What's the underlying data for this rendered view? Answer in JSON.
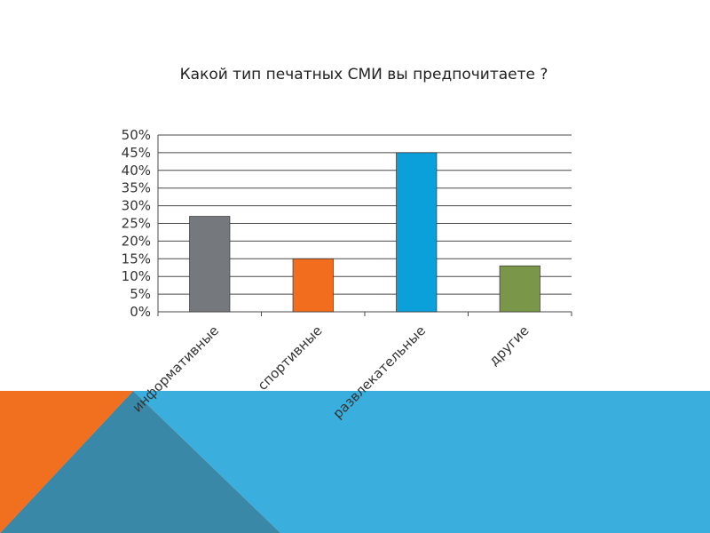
{
  "slide": {
    "decor_colors": {
      "blue": "#3AAFDD",
      "orange": "#F07020",
      "overlap": "#3A88A8"
    }
  },
  "chart_data": {
    "type": "bar",
    "title": "Какой тип печатных СМИ вы предпочитаете ?",
    "categories": [
      "информативные",
      "спортивные",
      "развлекательные",
      "другие"
    ],
    "values": [
      27,
      15,
      45,
      13
    ],
    "colors": [
      "#75787D",
      "#F26D1E",
      "#0BA0D9",
      "#7A9648"
    ],
    "yticks": [
      "0%",
      "5%",
      "10%",
      "15%",
      "20%",
      "25%",
      "30%",
      "35%",
      "40%",
      "45%",
      "50%"
    ],
    "ylim": [
      0,
      50
    ],
    "grid": true,
    "legend": "none"
  }
}
